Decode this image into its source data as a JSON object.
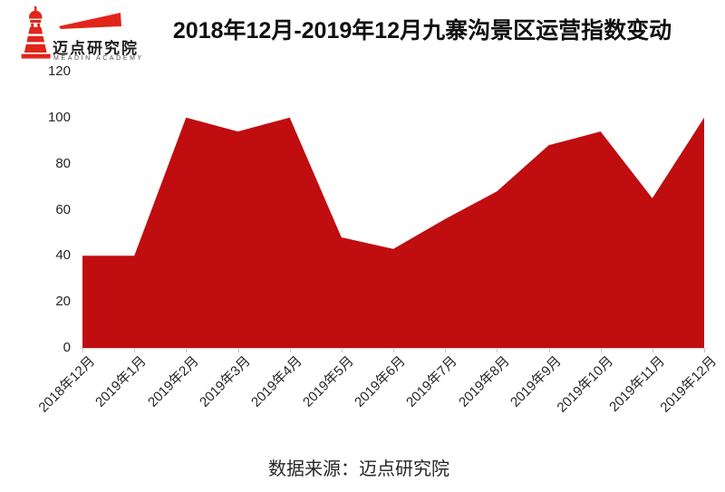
{
  "logo": {
    "name": "迈点研究院",
    "subtitle": "MEADIN ACADEMY",
    "brand_red": "#e1251b"
  },
  "header": {
    "title": "2018年12月-2019年12月九寨沟景区运营指数变动"
  },
  "footer": {
    "source": "数据来源：迈点研究院"
  },
  "chart_data": {
    "type": "area",
    "title": "2018年12月-2019年12月九寨沟景区运营指数变动",
    "categories": [
      "2018年12月",
      "2019年1月",
      "2019年2月",
      "2019年3月",
      "2019年4月",
      "2019年5月",
      "2019年6月",
      "2019年7月",
      "2019年8月",
      "2019年9月",
      "2019年10月",
      "2019年11月",
      "2019年12月"
    ],
    "values": [
      40,
      40,
      100,
      94,
      100,
      48,
      43,
      56,
      68,
      88,
      94,
      65,
      100
    ],
    "xlabel": "",
    "ylabel": "",
    "ylim": [
      0,
      120
    ],
    "ytick_interval": 20,
    "yticks": [
      0,
      20,
      40,
      60,
      80,
      100,
      120
    ],
    "grid": false,
    "legend": false,
    "series_color": "#c00d10",
    "axis_color": "#d9d9d9"
  }
}
